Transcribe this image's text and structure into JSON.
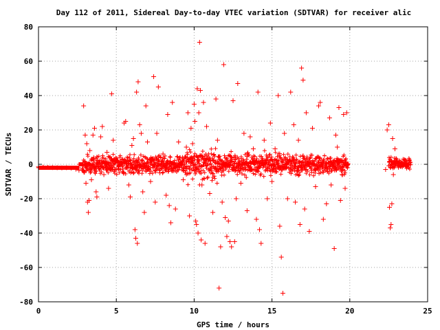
{
  "chart_data": {
    "type": "scatter",
    "title": "Day 112 of 2011, Sidereal Day-to-day VTEC variation (SDTVAR) for receiver alic",
    "xlabel": "GPS time / hours",
    "ylabel": "SDTVAR / TECUs",
    "xlim": [
      0,
      25
    ],
    "ylim": [
      -80,
      80
    ],
    "xticks": [
      0,
      5,
      10,
      15,
      20,
      25
    ],
    "yticks": [
      -80,
      -60,
      -40,
      -20,
      0,
      20,
      40,
      60,
      80
    ],
    "grid": true,
    "marker": "+",
    "color": "#ff0000",
    "series": [
      {
        "points": [
          [
            0.0,
            -1.5
          ],
          [
            0.3,
            -1.6
          ],
          [
            0.6,
            -1.8
          ],
          [
            0.9,
            -1.9
          ],
          [
            1.2,
            -2.0
          ],
          [
            1.5,
            -2.1
          ],
          [
            1.8,
            -2.0
          ],
          [
            2.1,
            -2.2
          ],
          [
            2.4,
            -2.8
          ],
          [
            2.6,
            -3.5
          ],
          [
            2.8,
            -3.2
          ],
          [
            2.9,
            34
          ],
          [
            3.0,
            17
          ],
          [
            3.05,
            -11
          ],
          [
            3.1,
            12
          ],
          [
            3.15,
            -22
          ],
          [
            3.2,
            -28
          ],
          [
            3.25,
            -21
          ],
          [
            3.3,
            8
          ],
          [
            3.4,
            -9
          ],
          [
            3.5,
            17
          ],
          [
            3.55,
            -2
          ],
          [
            3.6,
            21
          ],
          [
            3.7,
            -16
          ],
          [
            3.75,
            -19
          ],
          [
            3.8,
            2
          ],
          [
            4.0,
            16
          ],
          [
            4.1,
            22
          ],
          [
            4.2,
            -6
          ],
          [
            4.4,
            7
          ],
          [
            4.5,
            -14
          ],
          [
            4.7,
            41
          ],
          [
            4.8,
            14
          ],
          [
            5.0,
            -3
          ],
          [
            5.3,
            0
          ],
          [
            5.5,
            24
          ],
          [
            5.6,
            25
          ],
          [
            5.8,
            -12
          ],
          [
            5.9,
            -19
          ],
          [
            6.0,
            11
          ],
          [
            6.1,
            15
          ],
          [
            6.2,
            -38
          ],
          [
            6.25,
            -43
          ],
          [
            6.3,
            42
          ],
          [
            6.35,
            -46
          ],
          [
            6.4,
            48
          ],
          [
            6.5,
            23
          ],
          [
            6.6,
            18
          ],
          [
            6.7,
            -16
          ],
          [
            6.8,
            -28
          ],
          [
            6.9,
            34
          ],
          [
            7.0,
            13
          ],
          [
            7.2,
            -10
          ],
          [
            7.3,
            3
          ],
          [
            7.4,
            51
          ],
          [
            7.5,
            -22
          ],
          [
            7.6,
            18
          ],
          [
            7.7,
            45
          ],
          [
            7.8,
            -5
          ],
          [
            8.0,
            6
          ],
          [
            8.2,
            -18
          ],
          [
            8.3,
            29
          ],
          [
            8.4,
            -24
          ],
          [
            8.5,
            -34
          ],
          [
            8.6,
            36
          ],
          [
            8.8,
            -26
          ],
          [
            9.0,
            13
          ],
          [
            9.3,
            -9
          ],
          [
            9.5,
            10
          ],
          [
            9.6,
            30
          ],
          [
            9.7,
            -30
          ],
          [
            9.8,
            21
          ],
          [
            9.9,
            12
          ],
          [
            10.0,
            35
          ],
          [
            10.05,
            25
          ],
          [
            10.1,
            -33
          ],
          [
            10.15,
            -35
          ],
          [
            10.2,
            44
          ],
          [
            10.25,
            -40
          ],
          [
            10.3,
            30
          ],
          [
            10.35,
            71
          ],
          [
            10.4,
            43
          ],
          [
            10.45,
            -44
          ],
          [
            10.5,
            -12
          ],
          [
            10.6,
            36
          ],
          [
            10.7,
            -46
          ],
          [
            10.8,
            22
          ],
          [
            11.0,
            -17
          ],
          [
            11.2,
            -28
          ],
          [
            11.4,
            38
          ],
          [
            11.5,
            14
          ],
          [
            11.6,
            -72
          ],
          [
            11.7,
            -48
          ],
          [
            11.8,
            -22
          ],
          [
            11.9,
            58
          ],
          [
            12.0,
            -31
          ],
          [
            12.1,
            -42
          ],
          [
            12.2,
            -33
          ],
          [
            12.3,
            -45
          ],
          [
            12.4,
            -48
          ],
          [
            12.5,
            37
          ],
          [
            12.6,
            -45
          ],
          [
            12.7,
            -20
          ],
          [
            12.8,
            47
          ],
          [
            13.0,
            -11
          ],
          [
            13.2,
            18
          ],
          [
            13.4,
            -27
          ],
          [
            13.6,
            16
          ],
          [
            13.8,
            9
          ],
          [
            14.0,
            -32
          ],
          [
            14.1,
            42
          ],
          [
            14.2,
            -38
          ],
          [
            14.3,
            -46
          ],
          [
            14.5,
            14
          ],
          [
            14.7,
            -20
          ],
          [
            14.9,
            24
          ],
          [
            15.0,
            -10
          ],
          [
            15.2,
            9
          ],
          [
            15.4,
            40
          ],
          [
            15.5,
            -36
          ],
          [
            15.6,
            -54
          ],
          [
            15.7,
            -75
          ],
          [
            15.8,
            18
          ],
          [
            16.0,
            -20
          ],
          [
            16.2,
            42
          ],
          [
            16.4,
            23
          ],
          [
            16.5,
            -22
          ],
          [
            16.7,
            14
          ],
          [
            16.8,
            -35
          ],
          [
            16.9,
            56
          ],
          [
            17.0,
            49
          ],
          [
            17.1,
            -26
          ],
          [
            17.2,
            30
          ],
          [
            17.4,
            -39
          ],
          [
            17.6,
            21
          ],
          [
            17.8,
            -13
          ],
          [
            18.0,
            34
          ],
          [
            18.1,
            36
          ],
          [
            18.3,
            -32
          ],
          [
            18.5,
            -23
          ],
          [
            18.7,
            27
          ],
          [
            18.8,
            -12
          ],
          [
            19.0,
            -49
          ],
          [
            19.1,
            17
          ],
          [
            19.2,
            10
          ],
          [
            19.3,
            33
          ],
          [
            19.4,
            -21
          ],
          [
            19.5,
            -6
          ],
          [
            19.6,
            29
          ],
          [
            19.7,
            -14
          ],
          [
            19.8,
            30
          ],
          [
            22.3,
            -3
          ],
          [
            22.4,
            20
          ],
          [
            22.5,
            23
          ],
          [
            22.55,
            -25
          ],
          [
            22.6,
            -37
          ],
          [
            22.65,
            -35
          ],
          [
            22.7,
            -23
          ],
          [
            22.75,
            15
          ],
          [
            22.8,
            -6
          ],
          [
            22.9,
            9
          ],
          [
            23.0,
            3
          ],
          [
            23.3,
            0.5
          ],
          [
            23.6,
            0.3
          ],
          [
            23.8,
            0.1
          ]
        ]
      }
    ]
  }
}
